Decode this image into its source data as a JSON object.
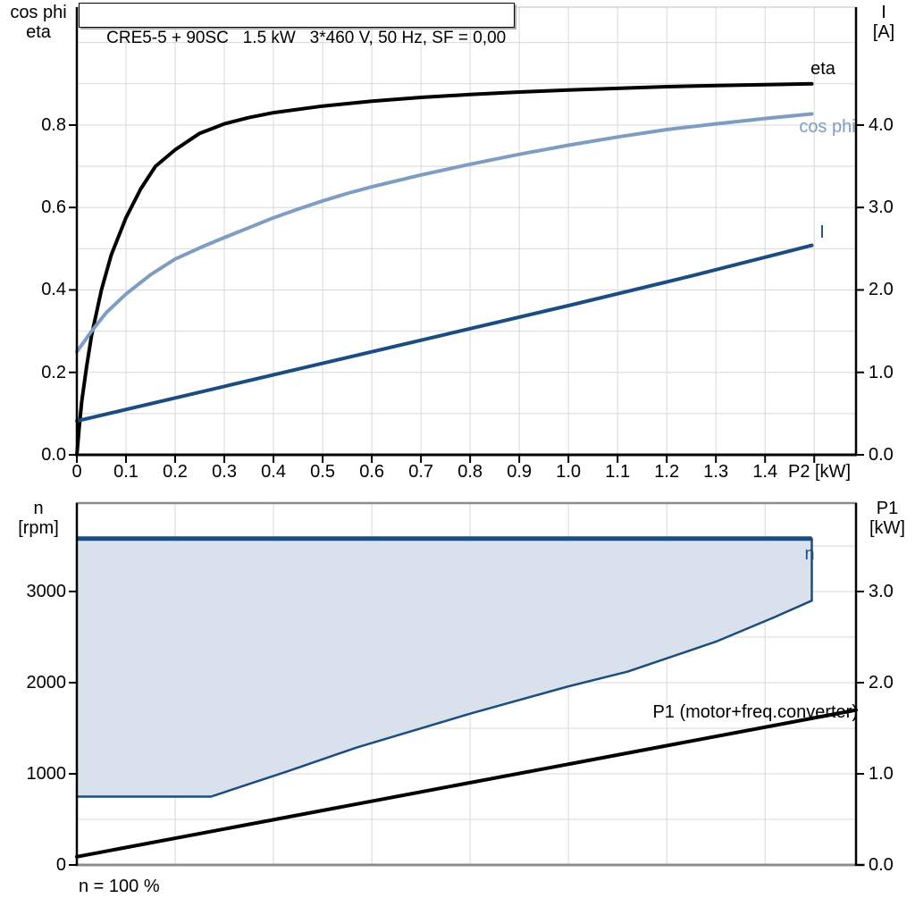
{
  "title": "CRE5-5 + 90SC   1.5 kW   3*460 V, 50 Hz, SF = 0,00",
  "colors": {
    "black_curve": "#000000",
    "cos_phi_curve": "#7F9DC1",
    "dark_blue_curve": "#1C4D7F",
    "region_fill": "#D8E1EC",
    "grid": "#D8D8D8",
    "frame_gray": "#8C8C8C",
    "frame_light": "#C0C0C0",
    "axis_black": "#000000"
  },
  "chart_data": [
    {
      "id": "motor-curves",
      "type": "line",
      "x_axis": {
        "label": "P2 [kW]",
        "min": 0,
        "max": 1.585,
        "grid_step": 0.1,
        "ticks": [
          [
            0,
            "0"
          ],
          [
            0.1,
            "0.1"
          ],
          [
            0.2,
            "0.2"
          ],
          [
            0.3,
            "0.3"
          ],
          [
            0.4,
            "0.4"
          ],
          [
            0.5,
            "0.5"
          ],
          [
            0.6,
            "0.6"
          ],
          [
            0.7,
            "0.7"
          ],
          [
            0.8,
            "0.8"
          ],
          [
            0.9,
            "0.9"
          ],
          [
            1.0,
            "1.0"
          ],
          [
            1.1,
            "1.1"
          ],
          [
            1.2,
            "1.2"
          ],
          [
            1.3,
            "1.3"
          ],
          [
            1.4,
            "1.4"
          ],
          [
            1.5,
            ""
          ]
        ]
      },
      "left_axis": {
        "label_line1": "cos phi",
        "label_line2": "eta",
        "min": 0,
        "max": 1.086,
        "grid_step": 0.1,
        "ticks": [
          [
            0,
            "0.0"
          ],
          [
            0.2,
            "0.2"
          ],
          [
            0.4,
            "0.4"
          ],
          [
            0.6,
            "0.6"
          ],
          [
            0.8,
            "0.8"
          ]
        ]
      },
      "right_axis": {
        "label_line1": "I",
        "label_line2": "[A]",
        "min": 0,
        "max": 5.43,
        "ticks": [
          [
            0,
            "0.0"
          ],
          [
            1,
            "1.0"
          ],
          [
            2,
            "2.0"
          ],
          [
            3,
            "3.0"
          ],
          [
            4,
            "4.0"
          ]
        ]
      },
      "series": [
        {
          "name": "eta",
          "label": "eta",
          "axis": "left",
          "color_key": "black_curve",
          "width": 4,
          "points": [
            [
              0,
              0
            ],
            [
              0.005,
              0.07
            ],
            [
              0.01,
              0.13
            ],
            [
              0.02,
              0.215
            ],
            [
              0.03,
              0.29
            ],
            [
              0.05,
              0.4
            ],
            [
              0.07,
              0.485
            ],
            [
              0.1,
              0.575
            ],
            [
              0.13,
              0.645
            ],
            [
              0.16,
              0.7
            ],
            [
              0.2,
              0.74
            ],
            [
              0.25,
              0.78
            ],
            [
              0.3,
              0.803
            ],
            [
              0.35,
              0.818
            ],
            [
              0.4,
              0.83
            ],
            [
              0.5,
              0.846
            ],
            [
              0.6,
              0.858
            ],
            [
              0.7,
              0.867
            ],
            [
              0.8,
              0.874
            ],
            [
              0.9,
              0.88
            ],
            [
              1.0,
              0.885
            ],
            [
              1.1,
              0.889
            ],
            [
              1.2,
              0.893
            ],
            [
              1.3,
              0.896
            ],
            [
              1.4,
              0.898
            ],
            [
              1.495,
              0.9
            ]
          ]
        },
        {
          "name": "cos phi",
          "label": "cos phi",
          "axis": "left",
          "color_key": "cos_phi_curve",
          "width": 4,
          "points": [
            [
              0,
              0.25
            ],
            [
              0.03,
              0.3
            ],
            [
              0.06,
              0.345
            ],
            [
              0.1,
              0.39
            ],
            [
              0.15,
              0.437
            ],
            [
              0.2,
              0.475
            ],
            [
              0.25,
              0.502
            ],
            [
              0.3,
              0.527
            ],
            [
              0.35,
              0.551
            ],
            [
              0.4,
              0.575
            ],
            [
              0.45,
              0.596
            ],
            [
              0.5,
              0.616
            ],
            [
              0.55,
              0.634
            ],
            [
              0.6,
              0.65
            ],
            [
              0.7,
              0.679
            ],
            [
              0.8,
              0.705
            ],
            [
              0.9,
              0.729
            ],
            [
              1.0,
              0.751
            ],
            [
              1.1,
              0.771
            ],
            [
              1.2,
              0.789
            ],
            [
              1.3,
              0.803
            ],
            [
              1.4,
              0.816
            ],
            [
              1.495,
              0.827
            ]
          ]
        },
        {
          "name": "I",
          "label": "I",
          "axis": "right",
          "color_key": "dark_blue_curve",
          "width": 4,
          "points": [
            [
              0,
              0.41
            ],
            [
              0.25,
              0.76
            ],
            [
              0.5,
              1.11
            ],
            [
              0.75,
              1.46
            ],
            [
              1.0,
              1.81
            ],
            [
              1.25,
              2.17
            ],
            [
              1.495,
              2.54
            ]
          ]
        }
      ]
    },
    {
      "id": "speed-power",
      "type": "area+line",
      "x_axis": {
        "min": 0,
        "max": 1.585,
        "grid_step": 0.2,
        "ticks": []
      },
      "left_axis": {
        "label_line1": "n",
        "label_line2": "[rpm]",
        "min": 0,
        "max": 3970,
        "grid_step": 500,
        "ticks": [
          [
            0,
            "0"
          ],
          [
            1000,
            "1000"
          ],
          [
            2000,
            "2000"
          ],
          [
            3000,
            "3000"
          ]
        ]
      },
      "right_axis": {
        "label_line1": "P1",
        "label_line2": "[kW]",
        "min": 0,
        "max": 3.97,
        "ticks": [
          [
            0,
            "0.0"
          ],
          [
            1,
            "1.0"
          ],
          [
            2,
            "2.0"
          ],
          [
            3,
            "3.0"
          ]
        ]
      },
      "region": {
        "name": "n",
        "label": "n",
        "fill_key": "region_fill",
        "stroke_key": "dark_blue_curve",
        "top_rpm": 3580,
        "top_x_end": 1.495,
        "top_width": 5,
        "outline_width": 2.5,
        "outline": [
          [
            0,
            3580
          ],
          [
            1.495,
            3580
          ],
          [
            1.495,
            2900
          ],
          [
            1.42,
            2720
          ],
          [
            1.3,
            2450
          ],
          [
            1.12,
            2120
          ],
          [
            1.0,
            1960
          ],
          [
            0.8,
            1660
          ],
          [
            0.57,
            1290
          ],
          [
            0.43,
            1030
          ],
          [
            0.273,
            750
          ],
          [
            0,
            750
          ]
        ]
      },
      "p1_series": {
        "name": "P1",
        "label": "P1 (motor+freq.converter)",
        "axis": "right",
        "color_key": "black_curve",
        "width": 4,
        "points": [
          [
            0,
            0.09
          ],
          [
            1.585,
            1.7
          ]
        ]
      },
      "footnote": "n = 100 %"
    }
  ]
}
